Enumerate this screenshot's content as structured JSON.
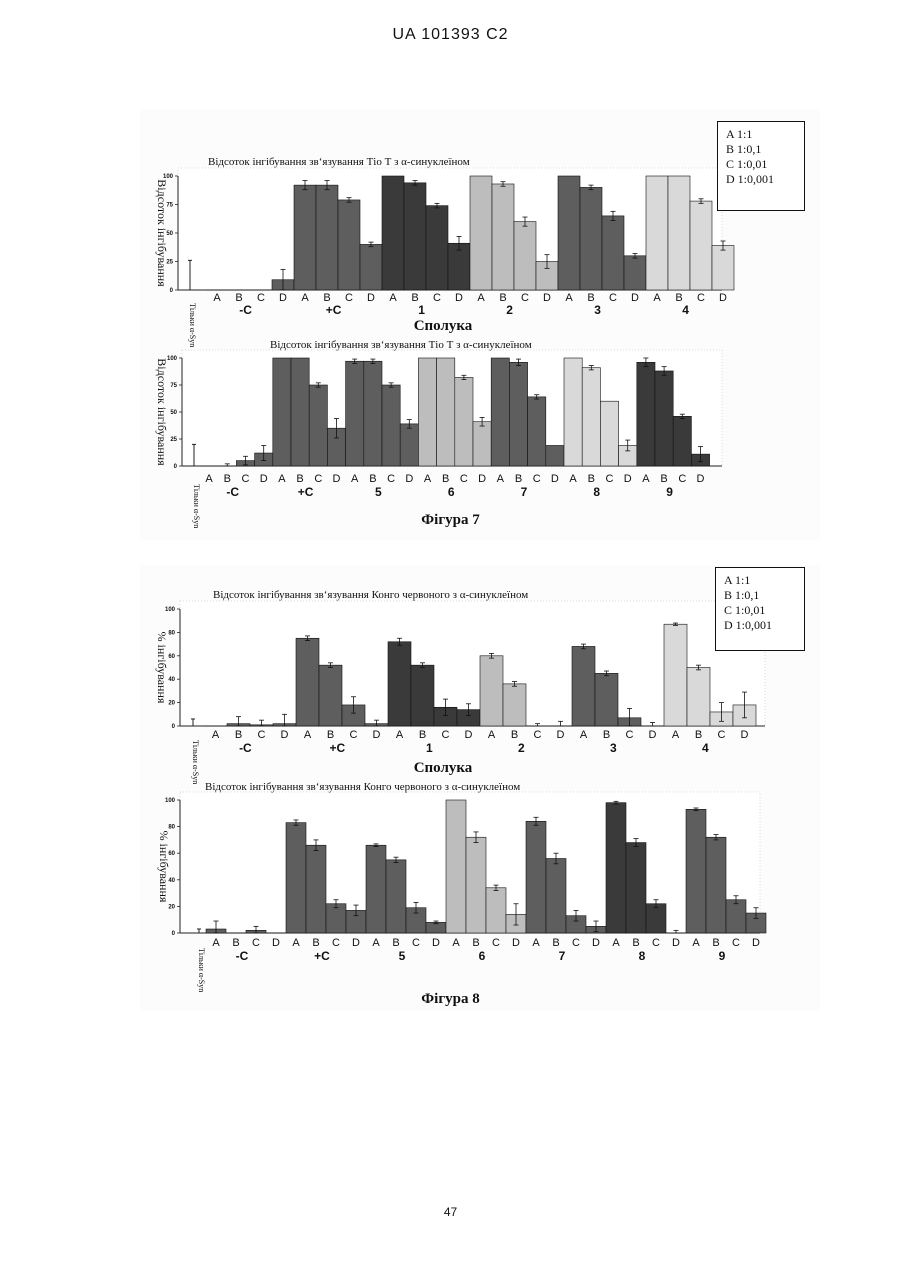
{
  "document": {
    "header": "UA   101393   C2",
    "page_number": "47",
    "figure7_caption": "Фігура 7",
    "figure8_caption": "Фігура 8"
  },
  "legends": {
    "fig7": [
      "A 1:1",
      "B 1:0,1",
      "C 1:0,01",
      "D 1:0,001"
    ],
    "fig8": [
      "A 1:1",
      "B 1:0,1",
      "C 1:0,01",
      "D 1:0,001"
    ]
  },
  "colors": {
    "bar_dark": "#3a3a3a",
    "bar_mid": "#5e5e5e",
    "bar_light": "#bdbdbd",
    "bar_lightest": "#d9d9d9",
    "axis": "#222222"
  },
  "chart_data": [
    {
      "id": "fig7a",
      "type": "bar",
      "title": "Відсоток інгібування зв‘язування Тіо Т з α-синуклеїном",
      "ylabel": "Відсоток інгібування",
      "xlabel": "Сполука",
      "control_label": "Тільки α-Syn",
      "yticks": [
        "0",
        "25",
        "50",
        "75",
        "100"
      ],
      "ylim": [
        0,
        100
      ],
      "categories": [
        "A",
        "B",
        "C",
        "D"
      ],
      "groups": [
        {
          "label": "-C",
          "values": [
            0,
            0,
            0,
            9
          ],
          "errors": [
            0,
            0,
            0,
            9
          ],
          "shade": "mid"
        },
        {
          "label": "+C",
          "values": [
            92,
            92,
            79,
            40
          ],
          "errors": [
            4,
            4,
            2,
            2
          ],
          "shade": "mid"
        },
        {
          "label": "1",
          "values": [
            100,
            94,
            74,
            41
          ],
          "errors": [
            0,
            2,
            2,
            6
          ],
          "shade": "dark"
        },
        {
          "label": "2",
          "values": [
            100,
            93,
            60,
            25
          ],
          "errors": [
            0,
            2,
            4,
            6
          ],
          "shade": "light"
        },
        {
          "label": "3",
          "values": [
            100,
            90,
            65,
            30
          ],
          "errors": [
            0,
            2,
            4,
            2
          ],
          "shade": "mid"
        },
        {
          "label": "4",
          "values": [
            100,
            100,
            78,
            39
          ],
          "errors": [
            0,
            0,
            2,
            4
          ],
          "shade": "lightest"
        }
      ],
      "control": {
        "value": 0,
        "error": 26
      }
    },
    {
      "id": "fig7b",
      "type": "bar",
      "title": "Відсоток інгібування зв‘язування Тіо Т з α-синуклеїном",
      "ylabel": "Відсоток інгібування",
      "xlabel": "",
      "control_label": "Тільки α-Syn",
      "yticks": [
        "0",
        "25",
        "50",
        "75",
        "100"
      ],
      "ylim": [
        0,
        100
      ],
      "categories": [
        "A",
        "B",
        "C",
        "D"
      ],
      "groups": [
        {
          "label": "-C",
          "values": [
            0,
            0,
            5,
            12
          ],
          "errors": [
            0,
            2,
            4,
            7
          ],
          "shade": "mid"
        },
        {
          "label": "+C",
          "values": [
            100,
            100,
            75,
            35
          ],
          "errors": [
            0,
            0,
            2,
            9
          ],
          "shade": "mid"
        },
        {
          "label": "5",
          "values": [
            97,
            97,
            75,
            39
          ],
          "errors": [
            2,
            2,
            2,
            4
          ],
          "shade": "mid"
        },
        {
          "label": "6",
          "values": [
            100,
            100,
            82,
            41
          ],
          "errors": [
            0,
            0,
            2,
            4
          ],
          "shade": "light"
        },
        {
          "label": "7",
          "values": [
            100,
            96,
            64,
            19
          ],
          "errors": [
            0,
            3,
            2,
            0
          ],
          "shade": "mid"
        },
        {
          "label": "8",
          "values": [
            100,
            91,
            60,
            19
          ],
          "errors": [
            0,
            2,
            0,
            5
          ],
          "shade": "lightest"
        },
        {
          "label": "9",
          "values": [
            96,
            88,
            46,
            11
          ],
          "errors": [
            4,
            4,
            2,
            7
          ],
          "shade": "dark"
        }
      ],
      "control": {
        "value": 0,
        "error": 20
      }
    },
    {
      "id": "fig8a",
      "type": "bar",
      "title": "Відсоток інгібування зв‘язування Конго червоного з α-синуклеїном",
      "ylabel": "% інгібування",
      "xlabel": "Сполука",
      "control_label": "Тільки α-Syn",
      "yticks": [
        "0",
        "20",
        "40",
        "60",
        "80",
        "100"
      ],
      "ylim": [
        0,
        100
      ],
      "categories": [
        "A",
        "B",
        "C",
        "D"
      ],
      "groups": [
        {
          "label": "-C",
          "values": [
            0,
            2,
            1,
            2
          ],
          "errors": [
            0,
            6,
            4,
            8
          ],
          "shade": "mid"
        },
        {
          "label": "+C",
          "values": [
            75,
            52,
            18,
            2
          ],
          "errors": [
            2,
            2,
            7,
            3
          ],
          "shade": "mid"
        },
        {
          "label": "1",
          "values": [
            72,
            52,
            16,
            14
          ],
          "errors": [
            3,
            2,
            7,
            5
          ],
          "shade": "dark"
        },
        {
          "label": "2",
          "values": [
            60,
            36,
            0,
            0
          ],
          "errors": [
            2,
            2,
            2,
            4
          ],
          "shade": "light"
        },
        {
          "label": "3",
          "values": [
            68,
            45,
            7,
            0
          ],
          "errors": [
            2,
            2,
            8,
            3
          ],
          "shade": "mid"
        },
        {
          "label": "4",
          "values": [
            87,
            50,
            12,
            18
          ],
          "errors": [
            1,
            2,
            8,
            11
          ],
          "shade": "lightest"
        }
      ],
      "control": {
        "value": 0,
        "error": 6
      }
    },
    {
      "id": "fig8b",
      "type": "bar",
      "title": "Відсоток інгібування зв‘язування Конго червоного з α-синуклеїном",
      "ylabel": "% інгібування",
      "xlabel": "",
      "control_label": "Тільки α-Syn",
      "yticks": [
        "0",
        "20",
        "40",
        "60",
        "80",
        "100"
      ],
      "ylim": [
        0,
        100
      ],
      "categories": [
        "A",
        "B",
        "C",
        "D"
      ],
      "groups": [
        {
          "label": "-C",
          "values": [
            3,
            0,
            2,
            0
          ],
          "errors": [
            6,
            0,
            3,
            0
          ],
          "shade": "mid"
        },
        {
          "label": "+C",
          "values": [
            83,
            66,
            22,
            17
          ],
          "errors": [
            2,
            4,
            3,
            4
          ],
          "shade": "mid"
        },
        {
          "label": "5",
          "values": [
            66,
            55,
            19,
            8
          ],
          "errors": [
            1,
            2,
            4,
            1
          ],
          "shade": "mid"
        },
        {
          "label": "6",
          "values": [
            100,
            72,
            34,
            14
          ],
          "errors": [
            0,
            4,
            2,
            8
          ],
          "shade": "light"
        },
        {
          "label": "7",
          "values": [
            84,
            56,
            13,
            5
          ],
          "errors": [
            3,
            4,
            4,
            4
          ],
          "shade": "mid"
        },
        {
          "label": "8",
          "values": [
            98,
            68,
            22,
            0
          ],
          "errors": [
            1,
            3,
            3,
            2
          ],
          "shade": "dark"
        },
        {
          "label": "9",
          "values": [
            93,
            72,
            25,
            15
          ],
          "errors": [
            1,
            2,
            3,
            4
          ],
          "shade": "mid"
        }
      ],
      "control": {
        "value": 0,
        "error": 3
      }
    }
  ]
}
